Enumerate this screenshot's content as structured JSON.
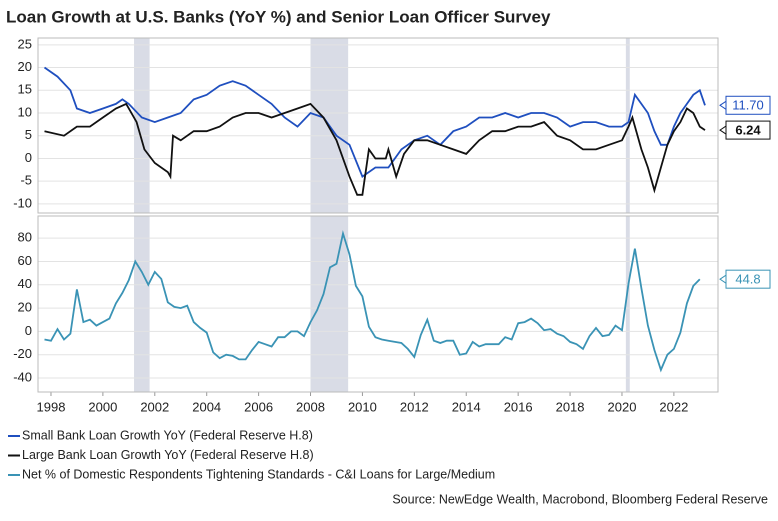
{
  "chart_data": [
    {
      "type": "line",
      "title": "Loan Growth at U.S. Banks (YoY %) and Senior Loan Officer Survey",
      "xlim": [
        1997.5,
        2023.7
      ],
      "ylim": [
        -12,
        26.5
      ],
      "yticks": [
        -10,
        -5,
        0,
        5,
        10,
        15,
        20,
        25
      ],
      "grid": true,
      "shaded_ranges": [
        [
          2001.2,
          2001.8
        ],
        [
          2008.0,
          2009.45
        ],
        [
          2020.15,
          2020.3
        ]
      ],
      "shade_color": "#d9dce6",
      "series": [
        {
          "name": "Small Bank Loan Growth YoY (Federal Reserve H.8)",
          "color": "#1f4fbf",
          "last_label": "11.70",
          "x": [
            1997.75,
            1998.25,
            1998.75,
            1999,
            1999.5,
            2000,
            2000.5,
            2000.75,
            2001,
            2001.5,
            2002,
            2002.5,
            2003,
            2003.5,
            2004,
            2004.5,
            2005,
            2005.5,
            2006,
            2006.5,
            2007,
            2007.5,
            2008,
            2008.5,
            2009,
            2009.5,
            2010,
            2010.5,
            2011,
            2011.5,
            2012,
            2012.5,
            2013,
            2013.5,
            2014,
            2014.5,
            2015,
            2015.5,
            2016,
            2016.5,
            2017,
            2017.5,
            2018,
            2018.5,
            2019,
            2019.5,
            2020,
            2020.25,
            2020.5,
            2020.75,
            2021,
            2021.25,
            2021.5,
            2021.75,
            2022,
            2022.25,
            2022.5,
            2022.75,
            2023,
            2023.2
          ],
          "values": [
            20,
            18,
            15,
            11,
            10,
            11,
            12,
            13,
            12,
            9,
            8,
            9,
            10,
            13,
            14,
            16,
            17,
            16,
            14,
            12,
            9,
            7,
            10,
            9,
            5,
            3,
            -4,
            -2,
            -2,
            2,
            4,
            5,
            3,
            6,
            7,
            9,
            9,
            10,
            9,
            10,
            10,
            9,
            7,
            8,
            8,
            7,
            7,
            8,
            14,
            12,
            10,
            6,
            3,
            3,
            7,
            10,
            12,
            14,
            15,
            11.7
          ]
        },
        {
          "name": "Large Bank Loan Growth YoY (Federal Reserve H.8)",
          "color": "#111111",
          "last_label": "6.24",
          "x": [
            1997.75,
            1998.5,
            1999,
            1999.5,
            2000,
            2000.5,
            2000.9,
            2001.3,
            2001.6,
            2002,
            2002.5,
            2002.6,
            2002.7,
            2003,
            2003.5,
            2004,
            2004.5,
            2005,
            2005.5,
            2006,
            2006.5,
            2007,
            2007.5,
            2008,
            2008.5,
            2009,
            2009.5,
            2009.8,
            2010,
            2010.25,
            2010.5,
            2010.9,
            2011,
            2011.3,
            2011.6,
            2012,
            2012.5,
            2013,
            2013.5,
            2014,
            2014.5,
            2015,
            2015.5,
            2016,
            2016.5,
            2017,
            2017.5,
            2018,
            2018.5,
            2019,
            2019.5,
            2020,
            2020.25,
            2020.4,
            2020.75,
            2021,
            2021.25,
            2021.5,
            2021.75,
            2022,
            2022.25,
            2022.5,
            2022.75,
            2023,
            2023.2
          ],
          "values": [
            6,
            5,
            7,
            7,
            9,
            11,
            12,
            8,
            2,
            -1,
            -3,
            -4,
            5,
            4,
            6,
            6,
            7,
            9,
            10,
            10,
            9,
            10,
            11,
            12,
            9,
            4,
            -4,
            -8,
            -8,
            2,
            0,
            0,
            2,
            -4,
            1,
            4,
            4,
            3,
            2,
            1,
            4,
            6,
            6,
            7,
            7,
            8,
            5,
            4,
            2,
            2,
            3,
            4,
            7,
            9,
            2,
            -2,
            -7,
            -2,
            3,
            6,
            8,
            11,
            10,
            7,
            6.24
          ]
        }
      ]
    },
    {
      "type": "line",
      "xlim": [
        1997.5,
        2023.7
      ],
      "ylim": [
        -52,
        99
      ],
      "yticks": [
        -40,
        -20,
        0,
        20,
        40,
        60,
        80
      ],
      "grid": true,
      "xticks": [
        1998,
        2000,
        2002,
        2004,
        2006,
        2008,
        2010,
        2012,
        2014,
        2016,
        2018,
        2020,
        2022
      ],
      "shaded_ranges": [
        [
          2001.2,
          2001.8
        ],
        [
          2008.0,
          2009.45
        ],
        [
          2020.15,
          2020.3
        ]
      ],
      "shade_color": "#d9dce6",
      "series": [
        {
          "name": "Net % of Domestic Respondents Tightening Standards  - C&I Loans for Large/Medium",
          "color": "#3a93b5",
          "last_label": "44.8",
          "x": [
            1997.75,
            1998,
            1998.25,
            1998.5,
            1998.75,
            1999,
            1999.25,
            1999.5,
            1999.75,
            2000,
            2000.25,
            2000.5,
            2000.75,
            2001,
            2001.25,
            2001.5,
            2001.75,
            2002,
            2002.25,
            2002.5,
            2002.75,
            2003,
            2003.25,
            2003.5,
            2003.75,
            2004,
            2004.25,
            2004.5,
            2004.75,
            2005,
            2005.25,
            2005.5,
            2005.75,
            2006,
            2006.25,
            2006.5,
            2006.75,
            2007,
            2007.25,
            2007.5,
            2007.75,
            2008,
            2008.25,
            2008.5,
            2008.75,
            2009,
            2009.25,
            2009.5,
            2009.75,
            2010,
            2010.25,
            2010.5,
            2010.75,
            2011,
            2011.25,
            2011.5,
            2011.75,
            2012,
            2012.25,
            2012.5,
            2012.75,
            2013,
            2013.25,
            2013.5,
            2013.75,
            2014,
            2014.25,
            2014.5,
            2014.75,
            2015,
            2015.25,
            2015.5,
            2015.75,
            2016,
            2016.25,
            2016.5,
            2016.75,
            2017,
            2017.25,
            2017.5,
            2017.75,
            2018,
            2018.25,
            2018.5,
            2018.75,
            2019,
            2019.25,
            2019.5,
            2019.75,
            2020,
            2020.25,
            2020.5,
            2020.75,
            2021,
            2021.25,
            2021.5,
            2021.75,
            2022,
            2022.25,
            2022.5,
            2022.75,
            2023
          ],
          "values": [
            -7,
            -8,
            2,
            -7,
            -2,
            36,
            8,
            10,
            5,
            8,
            11,
            24,
            33,
            44,
            60,
            51,
            40,
            51,
            45,
            25,
            21,
            20,
            22,
            8,
            3,
            -1,
            -18,
            -23,
            -20,
            -21,
            -24,
            -24,
            -16,
            -9,
            -11,
            -13,
            -5,
            -5,
            0,
            0,
            -4,
            8,
            18,
            32,
            55,
            58,
            84,
            66,
            39,
            30,
            4,
            -5,
            -7,
            -8,
            -9,
            -10,
            -15,
            -22,
            -3,
            10,
            -8,
            -10,
            -8,
            -8,
            -20,
            -19,
            -9,
            -13,
            -11,
            -11,
            -11,
            -5,
            -7,
            7,
            8,
            11,
            7,
            1,
            2,
            -2,
            -4,
            -9,
            -11,
            -15,
            -4,
            3,
            -4,
            -3,
            5,
            1,
            41,
            71,
            37,
            5,
            -16,
            -33,
            -20,
            -15,
            -1,
            24,
            39,
            44.8
          ]
        }
      ]
    }
  ],
  "source": "Source: NewEdge Wealth, Macrobond, Bloomberg Federal Reserve"
}
